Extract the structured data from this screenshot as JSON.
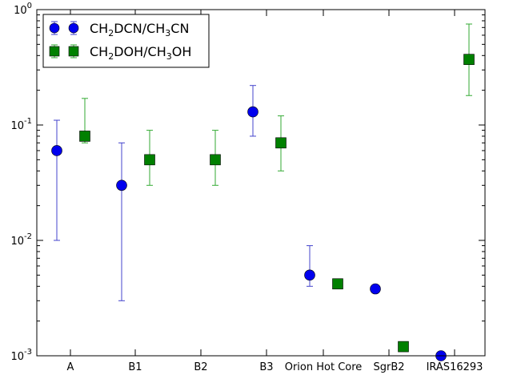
{
  "chart_data": {
    "type": "scatter",
    "yscale": "log",
    "ylim": [
      0.001,
      1
    ],
    "yticks": [
      {
        "value": 1,
        "base": "10",
        "exp": "0"
      },
      {
        "value": 0.1,
        "base": "10",
        "exp": "-1"
      },
      {
        "value": 0.01,
        "base": "10",
        "exp": "-2"
      },
      {
        "value": 0.001,
        "base": "10",
        "exp": "-3"
      }
    ],
    "categories": [
      "A",
      "B1",
      "B2",
      "B3",
      "Orion Hot Core",
      "SgrB2",
      "IRAS16293"
    ],
    "grid": false,
    "legend_position": "top-left",
    "series": [
      {
        "legend": {
          "a": "CH",
          "a_sub": "2",
          "b": "DCN/CH",
          "b_sub": "3",
          "c": "CN"
        },
        "marker": "circle",
        "color": "#0000ee",
        "errorbar_color": "#4444cc",
        "points": [
          {
            "category": "A",
            "y": 0.06,
            "ylow": 0.01,
            "yhigh": 0.11
          },
          {
            "category": "B1",
            "y": 0.03,
            "ylow": 0.003,
            "yhigh": 0.07
          },
          {
            "category": "B3",
            "y": 0.13,
            "ylow": 0.08,
            "yhigh": 0.22
          },
          {
            "category": "Orion Hot Core",
            "y": 0.005,
            "ylow": 0.004,
            "yhigh": 0.009
          },
          {
            "category": "SgrB2",
            "y": 0.0038
          },
          {
            "category": "IRAS16293",
            "y": 0.001
          }
        ]
      },
      {
        "legend": {
          "a": "CH",
          "a_sub": "2",
          "b": "DOH/CH",
          "b_sub": "3",
          "c": "OH"
        },
        "marker": "square",
        "color": "#008000",
        "errorbar_color": "#33aa33",
        "points": [
          {
            "category": "A",
            "y": 0.08,
            "ylow": 0.07,
            "yhigh": 0.17
          },
          {
            "category": "B1",
            "y": 0.05,
            "ylow": 0.03,
            "yhigh": 0.09
          },
          {
            "category": "B2",
            "y": 0.05,
            "ylow": 0.03,
            "yhigh": 0.09
          },
          {
            "category": "B3",
            "y": 0.07,
            "ylow": 0.04,
            "yhigh": 0.12
          },
          {
            "category": "Orion Hot Core",
            "y": 0.0042
          },
          {
            "category": "SgrB2",
            "y": 0.0012
          },
          {
            "category": "IRAS16293",
            "y": 0.37,
            "ylow": 0.18,
            "yhigh": 0.75
          }
        ]
      }
    ]
  }
}
